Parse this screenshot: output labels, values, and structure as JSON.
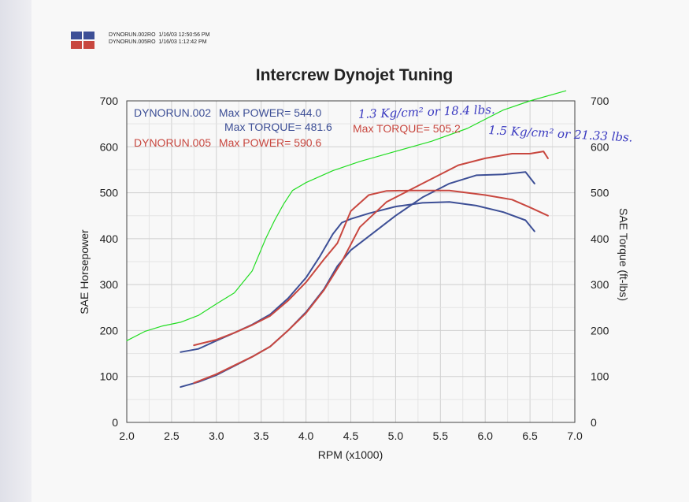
{
  "header": {
    "runs": [
      {
        "file": "DYNORUN.002RO",
        "date": "1/16/03",
        "time": "12:50:56 PM"
      },
      {
        "file": "DYNORUN.005RO",
        "date": "1/16/03",
        "time": "1:12:42 PM"
      }
    ]
  },
  "colors": {
    "run002": "#3d4f96",
    "run005": "#c8473f",
    "handwritten_curve": "#22dd22",
    "handwriting": "#3a3ac0"
  },
  "chart_data": {
    "type": "line",
    "title": "Intercrew Dynojet Tuning",
    "xlabel": "RPM (x1000)",
    "ylabel": "SAE Horsepower",
    "y2label": "SAE Torque (ft-lbs)",
    "xlim": [
      2.0,
      7.0
    ],
    "ylim": [
      0,
      700
    ],
    "xticks": [
      "2.0",
      "2.5",
      "3.0",
      "3.5",
      "4.0",
      "4.5",
      "5.0",
      "5.5",
      "6.0",
      "6.5",
      "7.0"
    ],
    "yticks": [
      "0",
      "100",
      "200",
      "300",
      "400",
      "500",
      "600",
      "700"
    ],
    "grid": true,
    "legend": {
      "run002_title": "DYNORUN.002",
      "run002_power": "Max POWER= 544.0",
      "run002_torque": "Max TORQUE= 481.6",
      "run005_title": "DYNORUN.005",
      "run005_power": "Max POWER= 590.6",
      "run005_torque": "Max TORQUE= 505.2"
    },
    "annotations": {
      "line1": "1.3 Kg/cm² or 18.4 lbs.",
      "line2": "1.5 Kg/cm² or 21.33 lbs."
    },
    "series": [
      {
        "name": "DYNORUN.002",
        "measure": "power",
        "color": "#3d4f96",
        "x": [
          2.6,
          2.8,
          3.0,
          3.2,
          3.4,
          3.6,
          3.8,
          4.0,
          4.2,
          4.35,
          4.5,
          4.7,
          5.0,
          5.3,
          5.6,
          5.9,
          6.2,
          6.45,
          6.55
        ],
        "y": [
          77,
          88,
          103,
          123,
          143,
          165,
          200,
          240,
          290,
          340,
          375,
          405,
          450,
          490,
          520,
          538,
          540,
          545,
          520
        ]
      },
      {
        "name": "DYNORUN.002",
        "measure": "torque",
        "color": "#3d4f96",
        "x": [
          2.6,
          2.8,
          3.0,
          3.2,
          3.4,
          3.6,
          3.8,
          4.0,
          4.15,
          4.3,
          4.4,
          4.5,
          4.7,
          5.0,
          5.3,
          5.6,
          5.9,
          6.2,
          6.45,
          6.55
        ],
        "y": [
          153,
          160,
          178,
          195,
          213,
          235,
          270,
          315,
          360,
          410,
          435,
          443,
          455,
          470,
          478,
          480,
          472,
          458,
          440,
          416
        ]
      },
      {
        "name": "DYNORUN.005",
        "measure": "power",
        "color": "#c8473f",
        "x": [
          2.75,
          3.0,
          3.2,
          3.4,
          3.6,
          3.8,
          4.0,
          4.2,
          4.4,
          4.6,
          4.9,
          5.3,
          5.7,
          6.0,
          6.3,
          6.5,
          6.65,
          6.7
        ],
        "y": [
          86,
          105,
          124,
          143,
          165,
          200,
          238,
          288,
          350,
          425,
          480,
          520,
          560,
          575,
          585,
          585,
          590,
          575
        ]
      },
      {
        "name": "DYNORUN.005",
        "measure": "torque",
        "color": "#c8473f",
        "x": [
          2.75,
          3.0,
          3.2,
          3.4,
          3.6,
          3.8,
          4.0,
          4.2,
          4.35,
          4.5,
          4.7,
          4.9,
          5.2,
          5.6,
          6.0,
          6.3,
          6.5,
          6.7
        ],
        "y": [
          168,
          180,
          195,
          212,
          232,
          265,
          305,
          355,
          390,
          460,
          495,
          504,
          505,
          505,
          495,
          485,
          468,
          450
        ]
      },
      {
        "name": "",
        "measure": "handwritten",
        "color": "#22dd22",
        "x": [
          2.0,
          2.2,
          2.4,
          2.6,
          2.8,
          3.0,
          3.2,
          3.4,
          3.55,
          3.65,
          3.75,
          3.85,
          4.0,
          4.3,
          4.6,
          5.0,
          5.4,
          5.8,
          6.2,
          6.5,
          6.9
        ],
        "y": [
          178,
          198,
          210,
          218,
          233,
          258,
          282,
          330,
          400,
          440,
          475,
          505,
          522,
          548,
          568,
          590,
          612,
          640,
          680,
          700,
          722
        ]
      }
    ]
  }
}
